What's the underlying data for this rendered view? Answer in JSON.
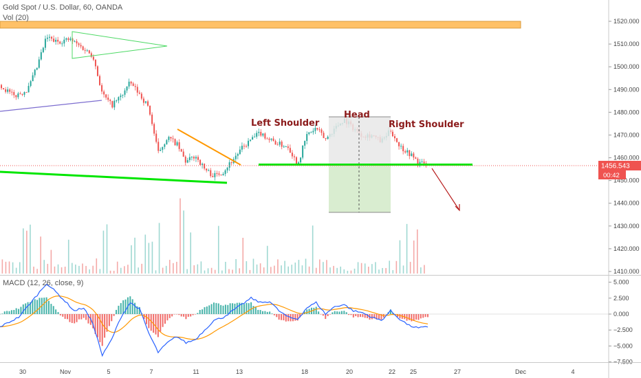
{
  "header": {
    "title": "Gold Spot / U.S. Dollar, 60, OANDA",
    "volume_label": "Vol (20)",
    "macd_label": "MACD (12, 26, close, 9)"
  },
  "price_label": {
    "value": "1456.543",
    "countdown": "00:42"
  },
  "colors": {
    "up": "#26a69a",
    "down": "#ef5350",
    "macd": "#2962ff",
    "signal": "#ff9800",
    "neckline": "#00e600",
    "zone": "#ffb74d",
    "label_bg": "#ef5350"
  },
  "chart_data": [
    {
      "type": "candlestick",
      "title": "Gold Spot / U.S. Dollar, 60, OANDA",
      "ylim": [
        1405,
        1528
      ],
      "yticks": [
        1410,
        1420,
        1430,
        1440,
        1450,
        1460,
        1470,
        1480,
        1490,
        1500,
        1510,
        1520
      ],
      "ytick_labels": [
        "1410.000",
        "1420.000",
        "1430.000",
        "1440.000",
        "1450.000",
        "1460.000",
        "1470.000",
        "1480.000",
        "1490.000",
        "1500.000",
        "1510.000",
        "1520.000"
      ],
      "x_ticks": [
        "30",
        "Nov",
        "5",
        "7",
        "11",
        "13",
        "18",
        "20",
        "22",
        "25",
        "27",
        "Dec",
        "4"
      ],
      "last_price": 1456.543,
      "price_path": [
        {
          "t": 0,
          "p": 1492
        },
        {
          "t": 3,
          "p": 1487
        },
        {
          "t": 6,
          "p": 1490
        },
        {
          "t": 8,
          "p": 1500
        },
        {
          "t": 10,
          "p": 1513
        },
        {
          "t": 12,
          "p": 1511
        },
        {
          "t": 15,
          "p": 1512
        },
        {
          "t": 18,
          "p": 1508
        },
        {
          "t": 20,
          "p": 1505
        },
        {
          "t": 22,
          "p": 1488
        },
        {
          "t": 24,
          "p": 1483
        },
        {
          "t": 26,
          "p": 1487
        },
        {
          "t": 28,
          "p": 1493
        },
        {
          "t": 30,
          "p": 1488
        },
        {
          "t": 32,
          "p": 1482
        },
        {
          "t": 34,
          "p": 1462
        },
        {
          "t": 36,
          "p": 1469
        },
        {
          "t": 38,
          "p": 1466
        },
        {
          "t": 40,
          "p": 1458
        },
        {
          "t": 42,
          "p": 1461
        },
        {
          "t": 44,
          "p": 1455
        },
        {
          "t": 46,
          "p": 1452
        },
        {
          "t": 48,
          "p": 1454
        },
        {
          "t": 50,
          "p": 1459
        },
        {
          "t": 52,
          "p": 1464
        },
        {
          "t": 54,
          "p": 1468
        },
        {
          "t": 56,
          "p": 1471
        },
        {
          "t": 58,
          "p": 1468
        },
        {
          "t": 60,
          "p": 1466
        },
        {
          "t": 62,
          "p": 1465
        },
        {
          "t": 64,
          "p": 1457
        },
        {
          "t": 66,
          "p": 1470
        },
        {
          "t": 68,
          "p": 1473
        },
        {
          "t": 70,
          "p": 1468
        },
        {
          "t": 72,
          "p": 1473
        },
        {
          "t": 74,
          "p": 1477
        },
        {
          "t": 76,
          "p": 1473
        },
        {
          "t": 78,
          "p": 1470
        },
        {
          "t": 80,
          "p": 1470
        },
        {
          "t": 82,
          "p": 1467
        },
        {
          "t": 84,
          "p": 1472
        },
        {
          "t": 86,
          "p": 1465
        },
        {
          "t": 88,
          "p": 1462
        },
        {
          "t": 90,
          "p": 1458
        },
        {
          "t": 92,
          "p": 1456.5
        }
      ],
      "annotations": [
        {
          "text": "Left Shoulder"
        },
        {
          "text": "Head"
        },
        {
          "text": "Right Shoulder"
        }
      ],
      "zone_price": [
        1517,
        1520
      ],
      "neckline_price": 1457,
      "target_zone": {
        "top": 1478,
        "mid": 1457,
        "bottom": 1436
      },
      "grid": false
    },
    {
      "type": "bar",
      "title": "Vol (20)"
    },
    {
      "type": "line",
      "title": "MACD (12, 26, close, 9)",
      "ylim": [
        -8,
        6
      ],
      "yticks": [
        5,
        2.5,
        0,
        -2.5,
        -5,
        -7.5
      ],
      "ytick_labels": [
        "5.000",
        "2.500",
        "0.000",
        "−2.500",
        "−5.000",
        "−7.500"
      ],
      "macd_path": [
        {
          "t": 0,
          "v": -2.0
        },
        {
          "t": 4,
          "v": -0.5
        },
        {
          "t": 8,
          "v": 3.0
        },
        {
          "t": 10,
          "v": 4.8
        },
        {
          "t": 12,
          "v": 3.5
        },
        {
          "t": 16,
          "v": 0.5
        },
        {
          "t": 18,
          "v": 1.0
        },
        {
          "t": 20,
          "v": -1.5
        },
        {
          "t": 22,
          "v": -6.5
        },
        {
          "t": 24,
          "v": -4.0
        },
        {
          "t": 26,
          "v": -0.5
        },
        {
          "t": 28,
          "v": 1.8
        },
        {
          "t": 30,
          "v": 0.8
        },
        {
          "t": 32,
          "v": -3.0
        },
        {
          "t": 34,
          "v": -6.0
        },
        {
          "t": 36,
          "v": -4.5
        },
        {
          "t": 38,
          "v": -3.5
        },
        {
          "t": 40,
          "v": -4.5
        },
        {
          "t": 42,
          "v": -4.0
        },
        {
          "t": 44,
          "v": -2.5
        },
        {
          "t": 46,
          "v": -1.0
        },
        {
          "t": 48,
          "v": -0.5
        },
        {
          "t": 50,
          "v": 0.5
        },
        {
          "t": 52,
          "v": 1.5
        },
        {
          "t": 54,
          "v": 2.5
        },
        {
          "t": 56,
          "v": 1.8
        },
        {
          "t": 58,
          "v": 2.0
        },
        {
          "t": 60,
          "v": 0.5
        },
        {
          "t": 62,
          "v": -0.5
        },
        {
          "t": 64,
          "v": -0.8
        },
        {
          "t": 66,
          "v": 1.0
        },
        {
          "t": 68,
          "v": 1.8
        },
        {
          "t": 70,
          "v": 0.0
        },
        {
          "t": 72,
          "v": 1.2
        },
        {
          "t": 74,
          "v": 1.5
        },
        {
          "t": 76,
          "v": 0.5
        },
        {
          "t": 78,
          "v": 0.2
        },
        {
          "t": 80,
          "v": -0.5
        },
        {
          "t": 82,
          "v": -1.0
        },
        {
          "t": 84,
          "v": 0.5
        },
        {
          "t": 86,
          "v": -0.8
        },
        {
          "t": 88,
          "v": -1.8
        },
        {
          "t": 90,
          "v": -2.2
        },
        {
          "t": 92,
          "v": -2.0
        }
      ]
    }
  ]
}
